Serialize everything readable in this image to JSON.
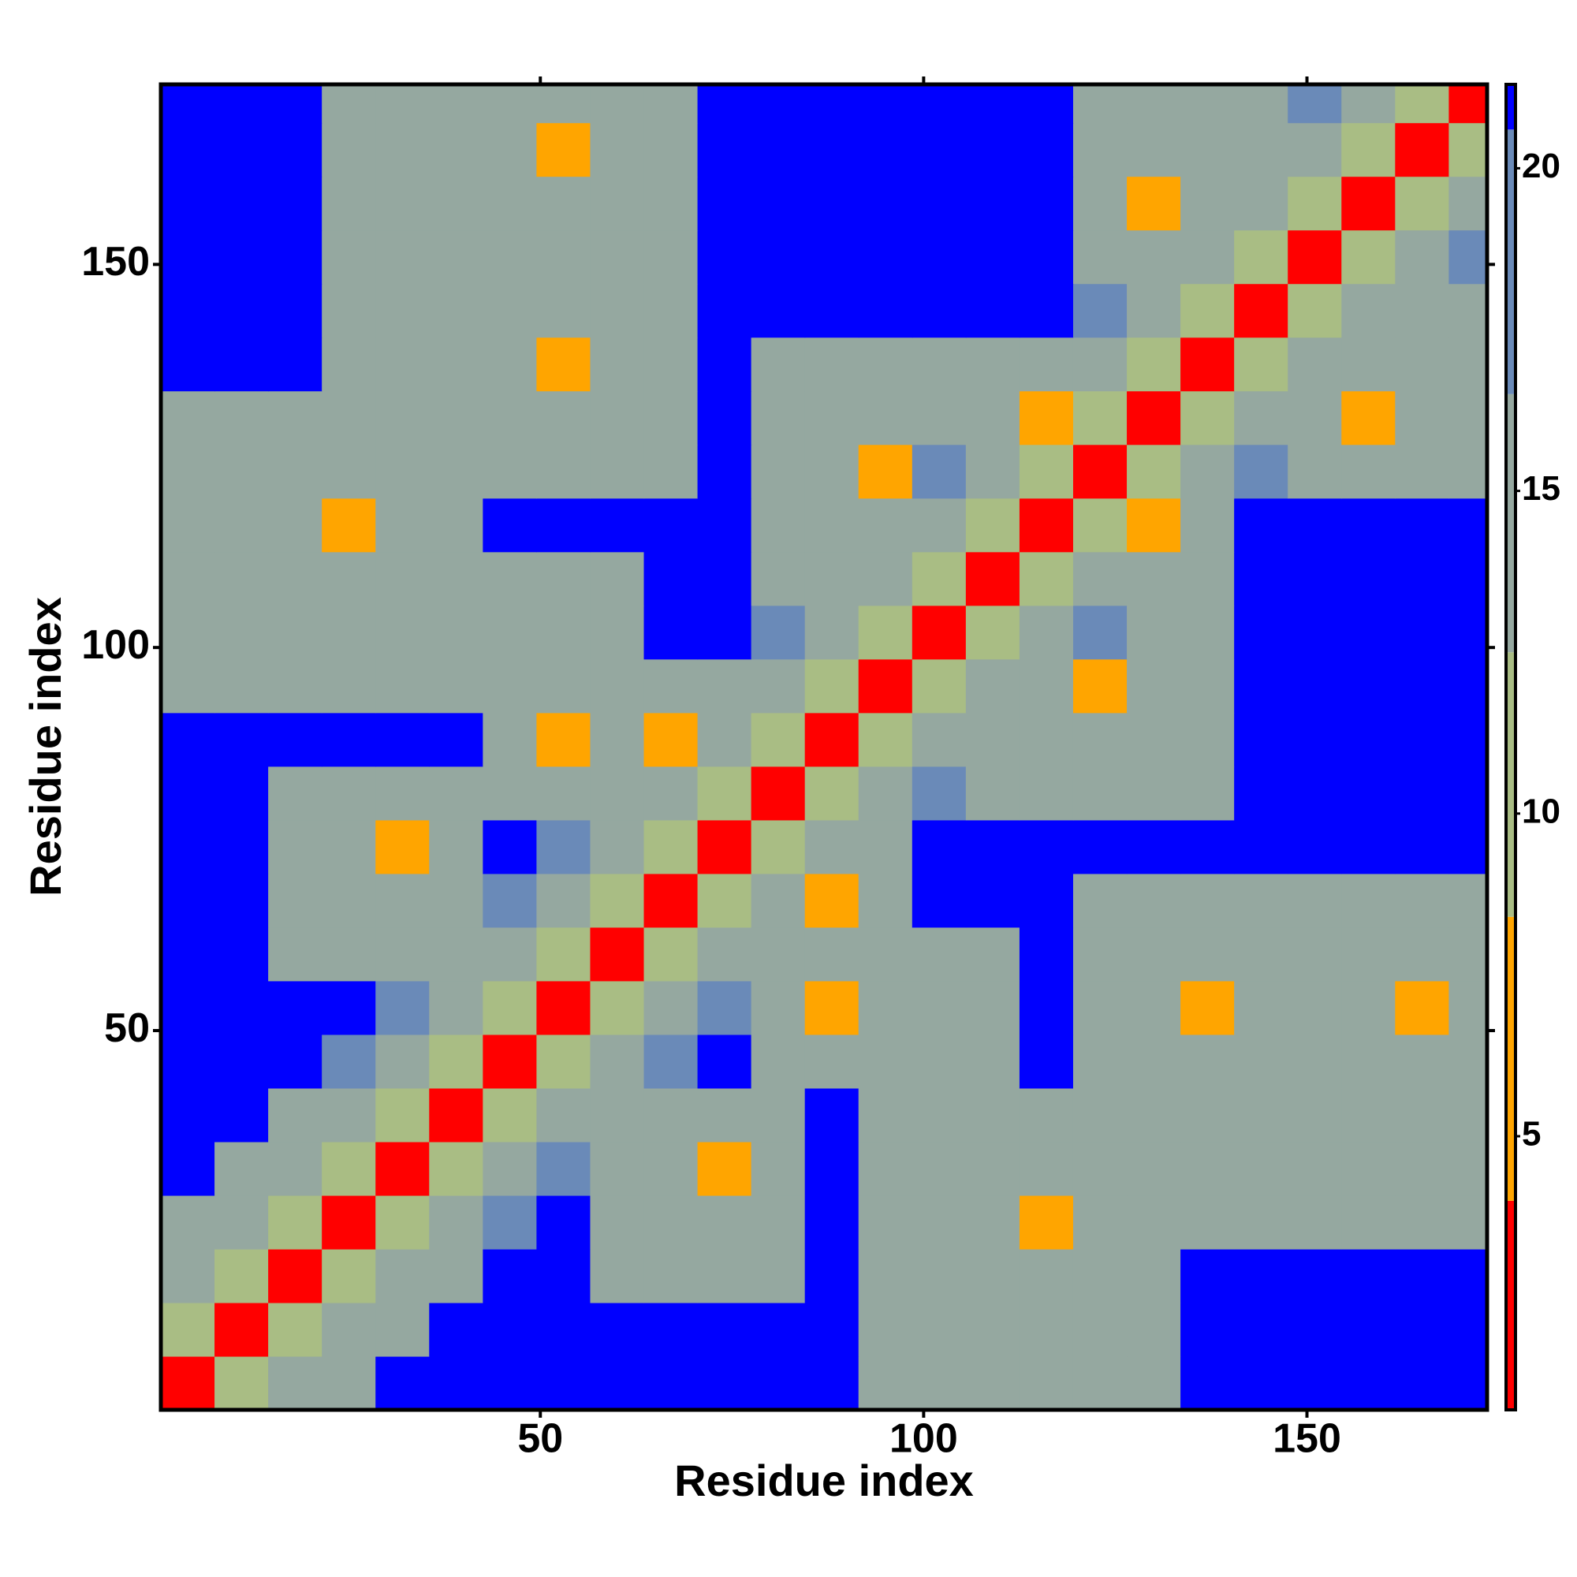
{
  "chart_data": {
    "type": "heatmap",
    "xlabel": "Residue index",
    "ylabel": "Residue index",
    "xlim": [
      0.5,
      173.5
    ],
    "ylim": [
      0.5,
      173.5
    ],
    "xticks": [
      50,
      100,
      150
    ],
    "yticks": [
      50,
      100,
      150
    ],
    "x_bins": [
      0.5,
      7.5,
      14.5,
      21.5,
      28.5,
      35.5,
      42.5,
      49.5,
      56.5,
      63.5,
      70.5,
      77.5,
      84.5,
      91.5,
      98.5,
      105.5,
      112.5,
      119.5,
      126.5,
      133.5,
      140.5,
      147.5,
      154.5,
      161.5,
      168.5,
      173.5
    ],
    "y_bins": [
      0.5,
      7.5,
      14.5,
      21.5,
      28.5,
      35.5,
      42.5,
      49.5,
      56.5,
      63.5,
      70.5,
      77.5,
      84.5,
      91.5,
      98.5,
      105.5,
      112.5,
      119.5,
      126.5,
      133.5,
      140.5,
      147.5,
      154.5,
      161.5,
      168.5,
      173.5
    ],
    "values": [
      [
        4,
        10,
        15,
        14,
        21,
        21,
        21,
        21,
        21,
        21,
        21,
        21,
        21,
        14,
        14,
        14,
        14,
        14,
        14,
        21,
        21,
        21,
        21,
        21,
        21
      ],
      [
        10,
        4,
        10,
        15,
        14,
        21,
        21,
        21,
        21,
        21,
        21,
        21,
        21,
        14,
        14,
        14,
        14,
        14,
        14,
        21,
        21,
        21,
        21,
        21,
        21
      ],
      [
        15,
        10,
        4,
        10,
        15,
        14,
        21,
        21,
        14,
        14,
        14,
        14,
        21,
        14,
        14,
        14,
        14,
        14,
        14,
        21,
        21,
        21,
        21,
        21,
        21
      ],
      [
        14,
        15,
        10,
        4,
        10,
        15,
        18,
        21,
        14,
        14,
        14,
        14,
        21,
        14,
        14,
        14,
        7,
        14,
        14,
        14,
        14,
        14,
        14,
        14,
        14
      ],
      [
        21,
        14,
        15,
        10,
        4,
        10,
        15,
        18,
        14,
        14,
        7,
        14,
        21,
        14,
        14,
        14,
        14,
        14,
        14,
        14,
        14,
        14,
        14,
        14,
        14
      ],
      [
        21,
        21,
        14,
        15,
        10,
        4,
        10,
        15,
        14,
        14,
        14,
        14,
        21,
        14,
        14,
        14,
        14,
        14,
        14,
        14,
        14,
        14,
        14,
        14,
        14
      ],
      [
        21,
        21,
        21,
        18,
        15,
        10,
        4,
        10,
        15,
        18,
        21,
        14,
        14,
        14,
        14,
        14,
        21,
        14,
        14,
        14,
        14,
        14,
        14,
        14,
        14
      ],
      [
        21,
        21,
        21,
        21,
        18,
        15,
        10,
        4,
        10,
        15,
        18,
        14,
        7,
        14,
        14,
        14,
        21,
        14,
        14,
        7,
        14,
        14,
        14,
        7,
        14
      ],
      [
        21,
        21,
        14,
        14,
        14,
        14,
        15,
        10,
        4,
        10,
        15,
        14,
        14,
        14,
        14,
        14,
        21,
        14,
        14,
        14,
        14,
        14,
        14,
        14,
        14
      ],
      [
        21,
        21,
        14,
        14,
        14,
        14,
        18,
        15,
        10,
        4,
        10,
        15,
        7,
        14,
        21,
        21,
        21,
        14,
        14,
        14,
        14,
        14,
        14,
        14,
        14
      ],
      [
        21,
        21,
        14,
        14,
        7,
        14,
        21,
        18,
        15,
        10,
        4,
        10,
        14,
        14,
        21,
        21,
        21,
        21,
        21,
        21,
        21,
        21,
        21,
        21,
        21
      ],
      [
        21,
        21,
        14,
        14,
        14,
        14,
        14,
        14,
        14,
        15,
        10,
        4,
        10,
        14,
        18,
        14,
        14,
        14,
        14,
        14,
        21,
        21,
        21,
        21,
        21
      ],
      [
        21,
        21,
        21,
        21,
        21,
        21,
        14,
        7,
        14,
        7,
        14,
        10,
        4,
        10,
        15,
        14,
        14,
        14,
        14,
        14,
        21,
        21,
        21,
        21,
        21
      ],
      [
        14,
        14,
        14,
        14,
        14,
        14,
        14,
        14,
        14,
        14,
        14,
        14,
        10,
        4,
        10,
        14,
        14,
        7,
        14,
        14,
        21,
        21,
        21,
        21,
        21
      ],
      [
        14,
        14,
        14,
        14,
        14,
        14,
        14,
        14,
        14,
        21,
        21,
        18,
        15,
        10,
        4,
        10,
        15,
        18,
        14,
        14,
        21,
        21,
        21,
        21,
        21
      ],
      [
        14,
        14,
        14,
        14,
        14,
        14,
        14,
        14,
        14,
        21,
        21,
        14,
        14,
        14,
        10,
        4,
        10,
        15,
        14,
        14,
        21,
        21,
        21,
        21,
        21
      ],
      [
        14,
        14,
        14,
        7,
        14,
        14,
        21,
        21,
        21,
        21,
        21,
        14,
        14,
        14,
        15,
        10,
        4,
        10,
        7,
        14,
        21,
        21,
        21,
        21,
        21
      ],
      [
        14,
        14,
        14,
        14,
        14,
        14,
        14,
        14,
        14,
        14,
        21,
        14,
        14,
        7,
        18,
        15,
        10,
        4,
        10,
        14,
        18,
        14,
        14,
        14,
        14
      ],
      [
        14,
        14,
        14,
        14,
        14,
        14,
        14,
        14,
        14,
        14,
        21,
        14,
        14,
        14,
        14,
        14,
        7,
        10,
        4,
        10,
        15,
        14,
        7,
        14,
        14
      ],
      [
        21,
        21,
        21,
        14,
        14,
        14,
        14,
        7,
        14,
        14,
        21,
        14,
        14,
        14,
        14,
        14,
        14,
        14,
        10,
        4,
        10,
        14,
        14,
        14,
        14
      ],
      [
        21,
        21,
        21,
        14,
        14,
        14,
        14,
        14,
        14,
        14,
        21,
        21,
        21,
        21,
        21,
        21,
        21,
        18,
        15,
        10,
        4,
        10,
        14,
        14,
        14
      ],
      [
        21,
        21,
        21,
        14,
        14,
        14,
        14,
        14,
        14,
        14,
        21,
        21,
        21,
        21,
        21,
        21,
        21,
        14,
        14,
        14,
        10,
        4,
        10,
        15,
        18
      ],
      [
        21,
        21,
        21,
        14,
        14,
        14,
        14,
        14,
        14,
        14,
        21,
        21,
        21,
        21,
        21,
        21,
        21,
        14,
        7,
        14,
        14,
        10,
        4,
        10,
        15
      ],
      [
        21,
        21,
        21,
        14,
        14,
        14,
        14,
        7,
        14,
        14,
        21,
        21,
        21,
        21,
        21,
        21,
        21,
        14,
        14,
        14,
        14,
        15,
        10,
        4,
        10
      ],
      [
        21,
        21,
        21,
        14,
        14,
        14,
        14,
        14,
        14,
        14,
        21,
        21,
        21,
        21,
        21,
        21,
        21,
        14,
        14,
        14,
        14,
        18,
        15,
        10,
        4
      ]
    ],
    "clim": [
      0.76,
      21.3
    ],
    "cticks": [
      5,
      10,
      15,
      20
    ],
    "color_levels": [
      {
        "max": 4,
        "color": "#ff0000"
      },
      {
        "max": 8.4,
        "color": "#ffa500"
      },
      {
        "max": 12.5,
        "color": "#a9bd84"
      },
      {
        "max": 16.5,
        "color": "#95a8a0"
      },
      {
        "max": 20.6,
        "color": "#6a8ab8"
      },
      {
        "max": 21.3,
        "color": "#0000ff"
      }
    ]
  }
}
